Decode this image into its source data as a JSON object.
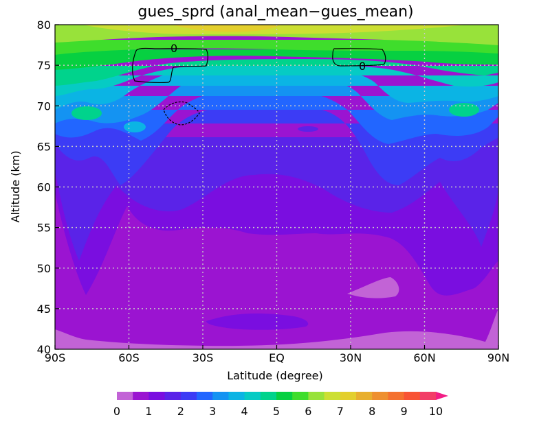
{
  "chart_data": {
    "type": "heatmap",
    "title": "gues_sprd (anal_mean−gues_mean)",
    "xlabel": "Latitude (degree)",
    "ylabel": "Altitude (km)",
    "x_ticks": [
      {
        "value": -90,
        "label": "90S"
      },
      {
        "value": -60,
        "label": "60S"
      },
      {
        "value": -30,
        "label": "30S"
      },
      {
        "value": 0,
        "label": "EQ"
      },
      {
        "value": 30,
        "label": "30N"
      },
      {
        "value": 60,
        "label": "60N"
      },
      {
        "value": 90,
        "label": "90N"
      }
    ],
    "y_ticks": [
      40,
      45,
      50,
      55,
      60,
      65,
      70,
      75,
      80
    ],
    "xlim": [
      -90,
      90
    ],
    "ylim": [
      40,
      80
    ],
    "grid": "dotted",
    "colorbar": {
      "levels": [
        0,
        0.5,
        1,
        1.5,
        2,
        2.5,
        3,
        3.5,
        4,
        4.5,
        5,
        5.5,
        6,
        6.5,
        7,
        7.5,
        8,
        8.5,
        9,
        9.5,
        10
      ],
      "tick_labels": [
        "0",
        "1",
        "2",
        "3",
        "4",
        "5",
        "6",
        "7",
        "8",
        "9",
        "10"
      ],
      "colors": [
        "#c263d6",
        "#9b14d1",
        "#7a0ee0",
        "#5a23e8",
        "#3c3cf5",
        "#2266ff",
        "#1493f2",
        "#0bb4e4",
        "#06cbc4",
        "#00d38c",
        "#07d041",
        "#3fdd2c",
        "#98e23a",
        "#ccdf33",
        "#e3cf2d",
        "#e8af2e",
        "#ee902f",
        "#f4712f",
        "#f85334",
        "#f23d67"
      ],
      "extend": "max"
    },
    "contour_labels": [
      "0",
      "0"
    ]
  }
}
